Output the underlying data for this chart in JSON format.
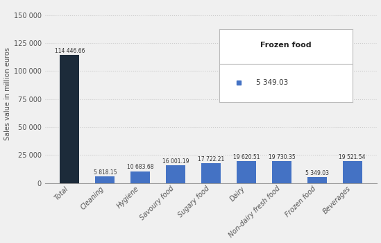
{
  "categories": [
    "Total",
    "Cleaning",
    "Hygiene",
    "Savoury food",
    "Sugary food",
    "Dairy",
    "Non-dairy fresh food",
    "Frozen food",
    "Beverages"
  ],
  "values": [
    114446.66,
    5818.15,
    10683.68,
    16001.19,
    17722.21,
    19620.51,
    19730.35,
    5349.03,
    19521.54
  ],
  "bar_colors": [
    "#1c2b3a",
    "#4472c4",
    "#4472c4",
    "#4472c4",
    "#4472c4",
    "#4472c4",
    "#4472c4",
    "#4472c4",
    "#4472c4"
  ],
  "labels": [
    "114 446.66",
    "5 818.15",
    "10 683.68",
    "16 001.19",
    "17 722.21",
    "19 620.51",
    "19 730.35",
    "5 349.03",
    "19 521.54"
  ],
  "ylabel": "Sales value in million euros",
  "ylim": [
    0,
    160000
  ],
  "yticks": [
    0,
    25000,
    50000,
    75000,
    100000,
    125000,
    150000
  ],
  "ytick_labels": [
    "0",
    "25 000",
    "50 000",
    "75 000",
    "100 000",
    "125 000",
    "150 000"
  ],
  "legend_title": "Frozen food",
  "legend_value": "5 349.03",
  "background_color": "#f0f0f0",
  "plot_bg_color": "#f0f0f0",
  "grid_color": "#cccccc"
}
